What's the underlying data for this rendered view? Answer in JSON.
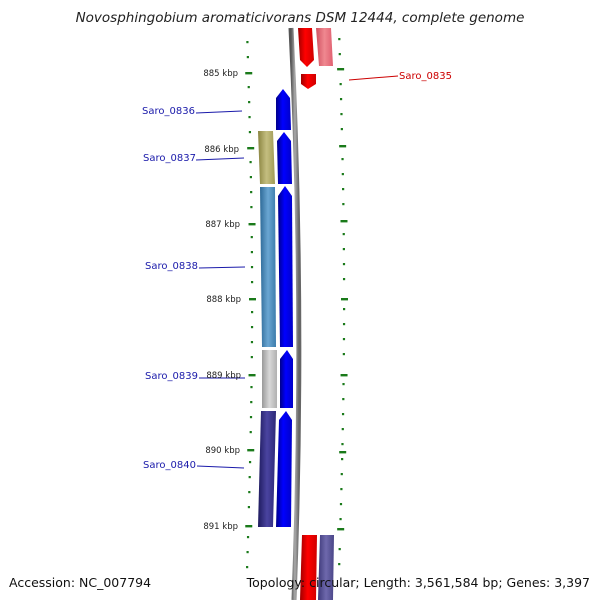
{
  "title": "Novosphingobium aromaticivorans DSM 12444, complete genome",
  "accession": "Accession: NC_007794",
  "footer_info": "Topology: circular; Length: 3,561,584 bp; Genes: 3,397",
  "kbp_labels": [
    "885 kbp",
    "886 kbp",
    "887 kbp",
    "888 kbp",
    "889 kbp",
    "890 kbp",
    "891 kbp"
  ],
  "gene_labels": [
    {
      "name": "Saro_0835",
      "color": "#cc0000",
      "side": "right"
    },
    {
      "name": "Saro_0836",
      "color": "#1a1aaa",
      "side": "left"
    },
    {
      "name": "Saro_0837",
      "color": "#1a1aaa",
      "side": "left"
    },
    {
      "name": "Saro_0838",
      "color": "#1a1aaa",
      "side": "left"
    },
    {
      "name": "Saro_0839",
      "color": "#1a1aaa",
      "side": "left"
    },
    {
      "name": "Saro_0840",
      "color": "#1a1aaa",
      "side": "left"
    }
  ],
  "colors": {
    "forward_strand": "#0000ff",
    "reverse_strand": "#ff0000",
    "backbone": "#888888",
    "ticks": "#1a7a1a"
  }
}
